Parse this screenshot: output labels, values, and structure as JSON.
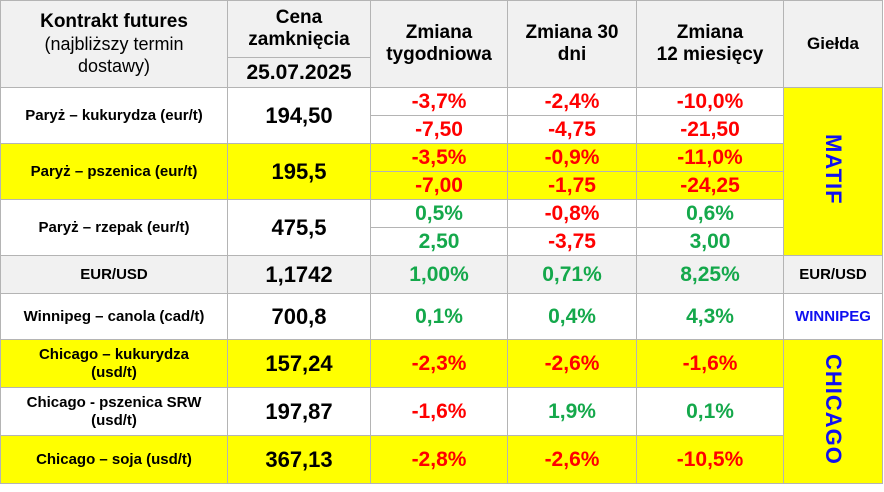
{
  "header": {
    "contract_line1": "Kontrakt futures",
    "contract_line2": "(najbliższy termin",
    "contract_line3": "dostawy)",
    "close_line1": "Cena",
    "close_line2": "zamknięcia",
    "close_date": "25.07.2025",
    "weekly_line1": "Zmiana",
    "weekly_line2": "tygodniowa",
    "d30_line1": "Zmiana 30",
    "d30_line2": "dni",
    "m12_line1": "Zmiana",
    "m12_line2": "12 miesięcy",
    "exchange": "Giełda"
  },
  "rows": [
    {
      "name": "Paryż – kukurydza  (eur/t)",
      "price": "194,50",
      "w_pct": "-3,7%",
      "w_abs": "-7,50",
      "d_pct": "-2,4%",
      "d_abs": "-4,75",
      "m_pct": "-10,0%",
      "m_abs": "-21,50"
    },
    {
      "name": "Paryż – pszenica (eur/t)",
      "price": "195,5",
      "w_pct": "-3,5%",
      "w_abs": "-7,00",
      "d_pct": "-0,9%",
      "d_abs": "-1,75",
      "m_pct": "-11,0%",
      "m_abs": "-24,25"
    },
    {
      "name": "Paryż – rzepak (eur/t)",
      "price": "475,5",
      "w_pct": "0,5%",
      "w_abs": "2,50",
      "d_pct": "-0,8%",
      "d_abs": "-3,75",
      "m_pct": "0,6%",
      "m_abs": "3,00"
    },
    {
      "name": "EUR/USD",
      "price": "1,1742",
      "w": "1,00%",
      "d": "0,71%",
      "m": "8,25%"
    },
    {
      "name": "Winnipeg – canola (cad/t)",
      "price": "700,8",
      "w": "0,1%",
      "d": "0,4%",
      "m": "4,3%"
    },
    {
      "name_line1": "Chicago – kukurydza",
      "name_line2": "(usd/t)",
      "price": "157,24",
      "w": "-2,3%",
      "d": "-2,6%",
      "m": "-1,6%"
    },
    {
      "name_line1": "Chicago - pszenica SRW",
      "name_line2": "(usd/t)",
      "price": "197,87",
      "w": "-1,6%",
      "d": "1,9%",
      "m": "0,1%"
    },
    {
      "name": "Chicago – soja (usd/t)",
      "price": "367,13",
      "w": "-2,8%",
      "d": "-2,6%",
      "m": "-10,5%"
    }
  ],
  "exchanges": {
    "matif": "MATIF",
    "eurusd": "EUR/USD",
    "winnipeg": "WINNIPEG",
    "chicago": "CHICAGO"
  },
  "colors": {
    "negative": "#ff0000",
    "positive": "#14a84b",
    "highlight": "#ffff00",
    "exchange_label": "#1010f0",
    "header_bg": "#f1f1f1"
  }
}
